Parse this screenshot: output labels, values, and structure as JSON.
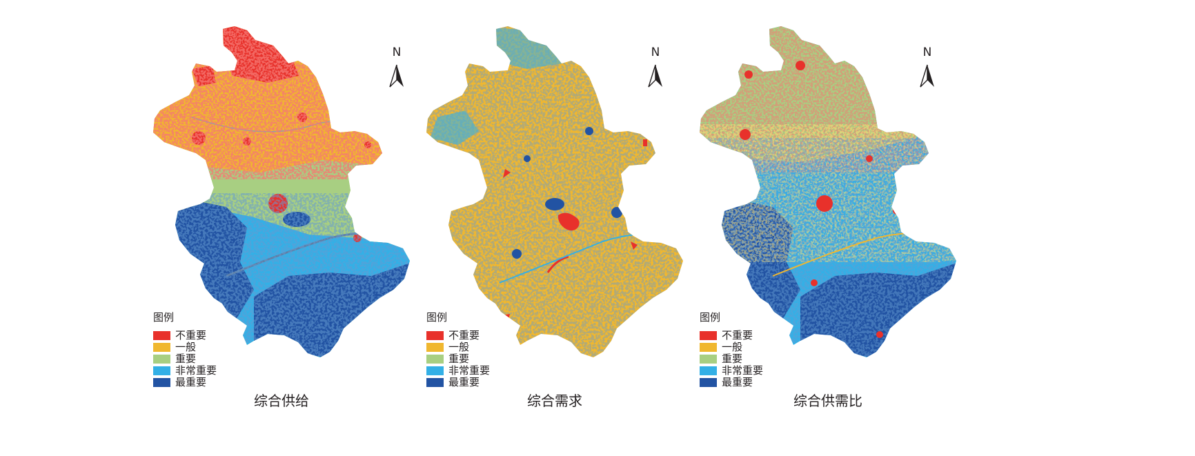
{
  "legend": {
    "title": "图例",
    "classes": [
      {
        "label": "不重要",
        "color": "#e8312b"
      },
      {
        "label": "一般",
        "color": "#f0b72f"
      },
      {
        "label": "重要",
        "color": "#a8cf82"
      },
      {
        "label": "非常重要",
        "color": "#33b0e6"
      },
      {
        "label": "最重要",
        "color": "#2253a3"
      }
    ]
  },
  "north_label": "N",
  "panels": [
    {
      "title": "综合供给"
    },
    {
      "title": "综合需求"
    },
    {
      "title": "综合供需比"
    }
  ]
}
